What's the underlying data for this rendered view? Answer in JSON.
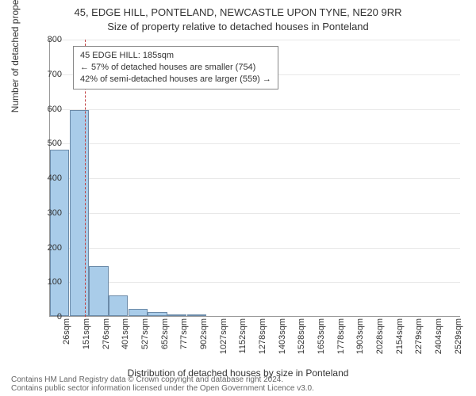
{
  "titles": {
    "main": "45, EDGE HILL, PONTELAND, NEWCASTLE UPON TYNE, NE20 9RR",
    "sub": "Size of property relative to detached houses in Ponteland"
  },
  "axes": {
    "ylabel": "Number of detached properties",
    "xlabel": "Distribution of detached houses by size in Ponteland",
    "ylim": [
      0,
      800
    ],
    "ytick_step": 100,
    "label_fontsize": 12,
    "tick_fontsize": 11
  },
  "callout": {
    "line1": "45 EDGE HILL: 185sqm",
    "line2": "← 57% of detached houses are smaller (754)",
    "line3": "42% of semi-detached houses are larger (559) →"
  },
  "marker": {
    "x_value": 185,
    "color": "#c04040"
  },
  "chart": {
    "type": "histogram",
    "bar_fill": "#a9cce9",
    "bar_border": "#6b8aa8",
    "bar_width": 0.98,
    "background_color": "#ffffff",
    "grid_color": "#e8e8e8",
    "categories": [
      "26sqm",
      "151sqm",
      "276sqm",
      "401sqm",
      "527sqm",
      "652sqm",
      "777sqm",
      "902sqm",
      "1027sqm",
      "1152sqm",
      "1278sqm",
      "1403sqm",
      "1528sqm",
      "1653sqm",
      "1778sqm",
      "1903sqm",
      "2028sqm",
      "2154sqm",
      "2279sqm",
      "2404sqm",
      "2529sqm"
    ],
    "values": [
      480,
      595,
      145,
      60,
      20,
      12,
      5,
      3,
      0,
      0,
      0,
      0,
      0,
      0,
      0,
      0,
      0,
      0,
      0,
      0,
      0
    ]
  },
  "copyright": {
    "line1": "Contains HM Land Registry data © Crown copyright and database right 2024.",
    "line2": "Contains public sector information licensed under the Open Government Licence v3.0."
  }
}
